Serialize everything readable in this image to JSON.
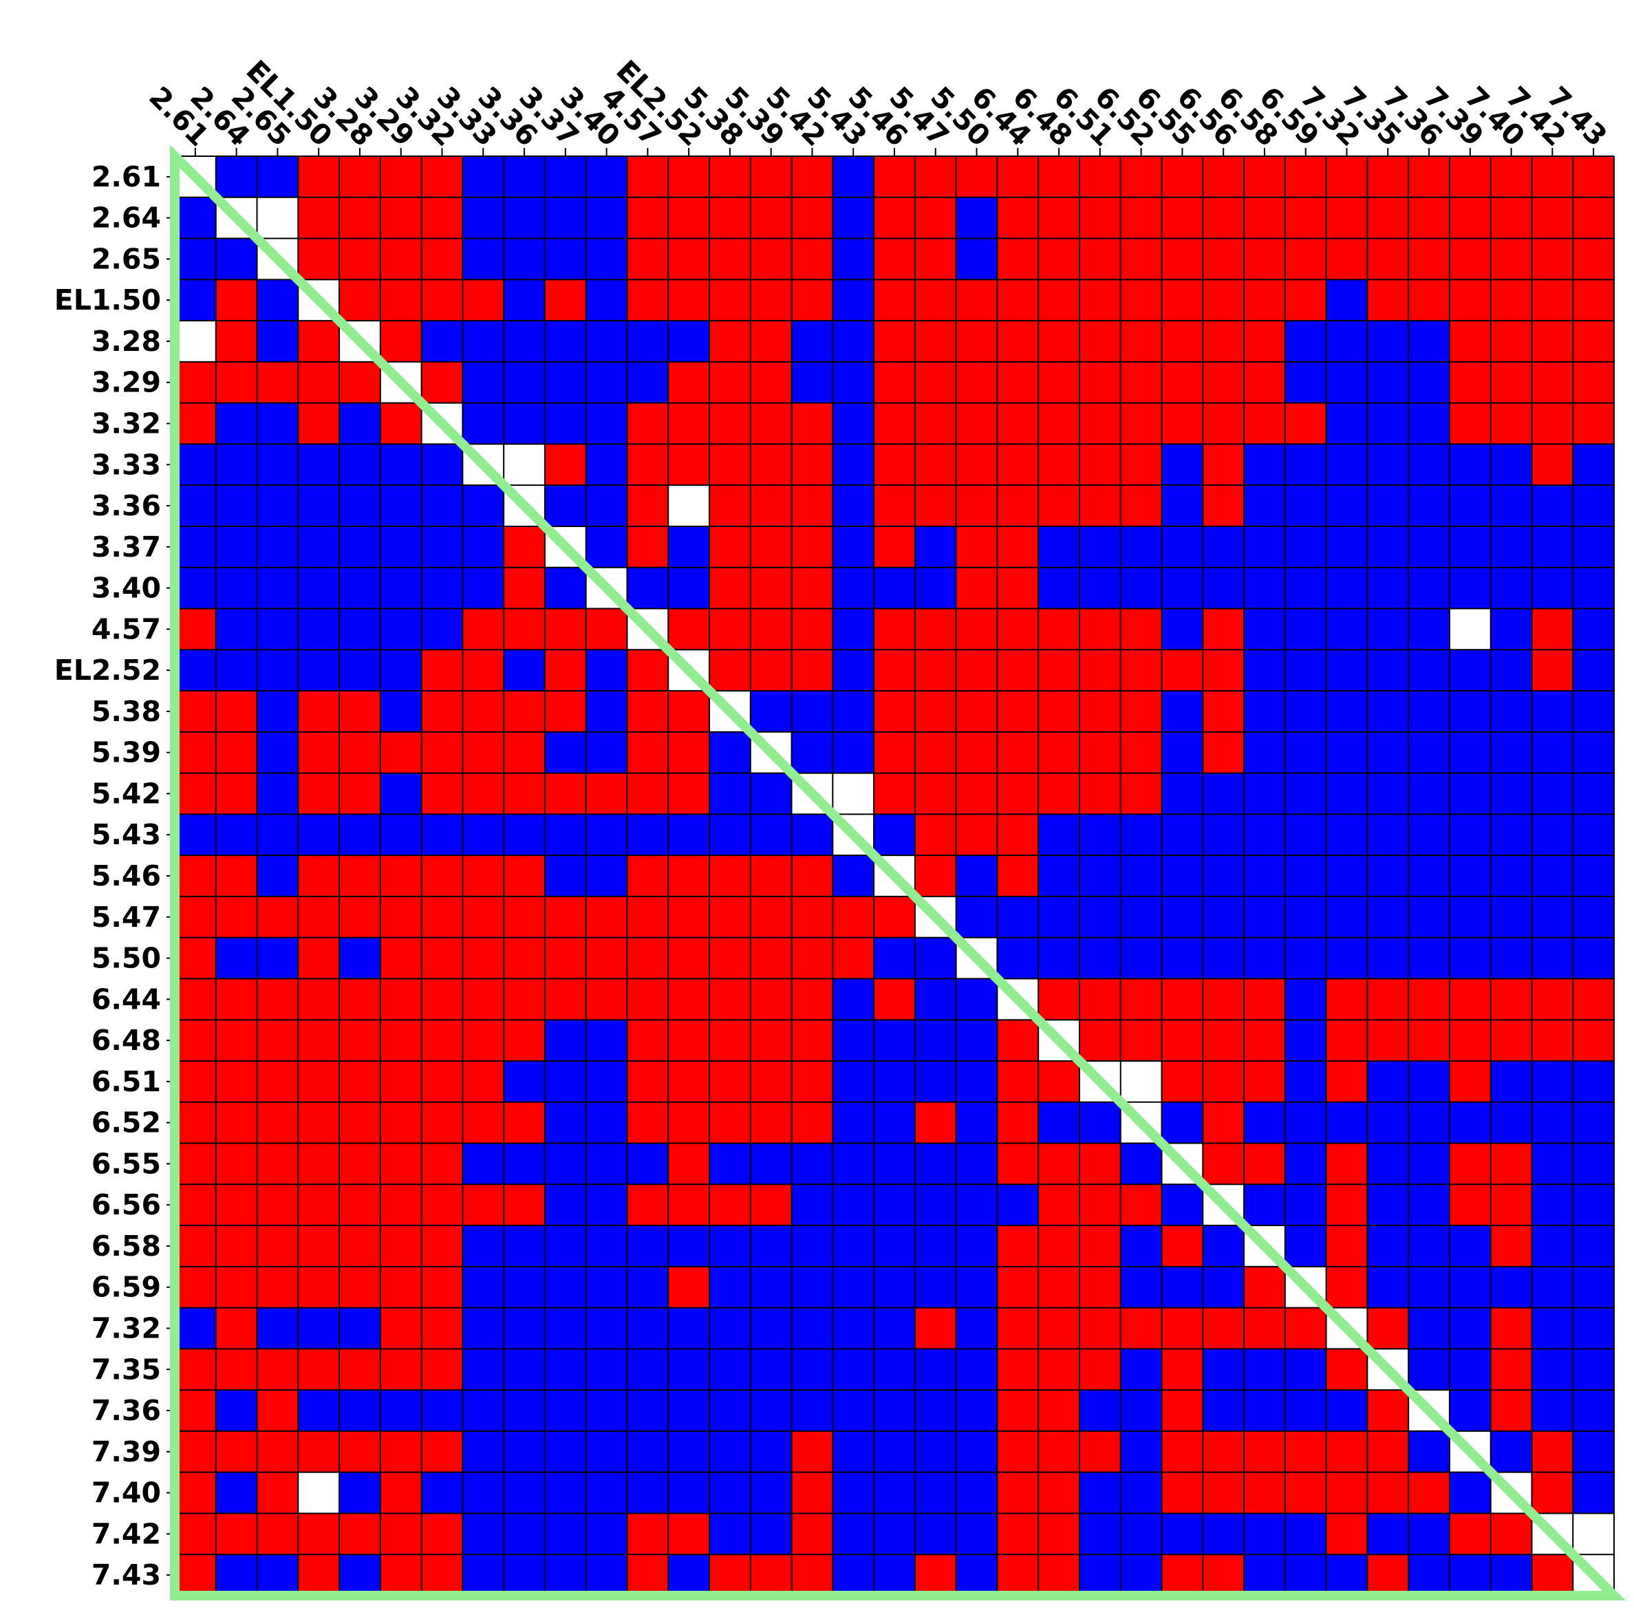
{
  "chart_data": {
    "type": "heatmap",
    "title": "",
    "labels": [
      "2.61",
      "2.64",
      "2.65",
      "EL1.50",
      "3.28",
      "3.29",
      "3.32",
      "3.33",
      "3.36",
      "3.37",
      "3.40",
      "4.57",
      "EL2.52",
      "5.38",
      "5.39",
      "5.42",
      "5.43",
      "5.46",
      "5.47",
      "5.50",
      "6.44",
      "6.48",
      "6.51",
      "6.52",
      "6.55",
      "6.56",
      "6.58",
      "6.59",
      "7.32",
      "7.35",
      "7.36",
      "7.39",
      "7.40",
      "7.42",
      "7.43"
    ],
    "value_legend": {
      "1": "red",
      "-1": "blue",
      "0": "white"
    },
    "colors": {
      "positive": "#ff0000",
      "negative": "#0000ff",
      "empty": "#ffffff",
      "triangle": "#90ee90",
      "gridline": "#000000"
    },
    "matrix": [
      [
        0,
        -1,
        -1,
        1,
        1,
        1,
        1,
        -1,
        -1,
        -1,
        -1,
        1,
        1,
        1,
        1,
        1,
        -1,
        1,
        1,
        1,
        1,
        1,
        1,
        1,
        1,
        1,
        1,
        1,
        1,
        1,
        1,
        1,
        1,
        1,
        1
      ],
      [
        -1,
        0,
        0,
        1,
        1,
        1,
        1,
        -1,
        -1,
        -1,
        -1,
        1,
        1,
        1,
        1,
        1,
        -1,
        1,
        1,
        -1,
        1,
        1,
        1,
        1,
        1,
        1,
        1,
        1,
        1,
        1,
        1,
        1,
        1,
        1,
        1
      ],
      [
        -1,
        -1,
        0,
        1,
        1,
        1,
        1,
        -1,
        -1,
        -1,
        -1,
        1,
        1,
        1,
        1,
        1,
        -1,
        1,
        1,
        -1,
        1,
        1,
        1,
        1,
        1,
        1,
        1,
        1,
        1,
        1,
        1,
        1,
        1,
        1,
        1
      ],
      [
        -1,
        1,
        -1,
        0,
        1,
        1,
        1,
        1,
        -1,
        1,
        -1,
        1,
        1,
        1,
        1,
        1,
        -1,
        1,
        1,
        1,
        1,
        1,
        1,
        1,
        1,
        1,
        1,
        1,
        -1,
        1,
        1,
        1,
        1,
        1,
        1
      ],
      [
        0,
        1,
        -1,
        1,
        0,
        1,
        -1,
        -1,
        -1,
        -1,
        -1,
        -1,
        -1,
        1,
        1,
        -1,
        -1,
        1,
        1,
        1,
        1,
        1,
        1,
        1,
        1,
        1,
        1,
        -1,
        -1,
        -1,
        -1,
        1,
        1,
        1,
        1
      ],
      [
        1,
        1,
        1,
        1,
        1,
        0,
        1,
        -1,
        -1,
        -1,
        -1,
        -1,
        1,
        1,
        1,
        -1,
        -1,
        1,
        1,
        1,
        1,
        1,
        1,
        1,
        1,
        1,
        1,
        -1,
        -1,
        -1,
        -1,
        1,
        1,
        1,
        1
      ],
      [
        1,
        -1,
        -1,
        1,
        -1,
        1,
        0,
        -1,
        -1,
        -1,
        -1,
        1,
        1,
        1,
        1,
        1,
        -1,
        1,
        1,
        1,
        1,
        1,
        1,
        1,
        1,
        1,
        1,
        1,
        -1,
        -1,
        -1,
        1,
        1,
        1,
        1
      ],
      [
        -1,
        -1,
        -1,
        -1,
        -1,
        -1,
        -1,
        0,
        0,
        1,
        -1,
        1,
        1,
        1,
        1,
        1,
        -1,
        1,
        1,
        1,
        1,
        1,
        1,
        1,
        -1,
        1,
        -1,
        -1,
        -1,
        -1,
        -1,
        -1,
        -1,
        1,
        -1
      ],
      [
        -1,
        -1,
        -1,
        -1,
        -1,
        -1,
        -1,
        -1,
        0,
        -1,
        -1,
        1,
        0,
        1,
        1,
        1,
        -1,
        1,
        1,
        1,
        1,
        1,
        1,
        1,
        -1,
        1,
        -1,
        -1,
        -1,
        -1,
        -1,
        -1,
        -1,
        -1,
        -1
      ],
      [
        -1,
        -1,
        -1,
        -1,
        -1,
        -1,
        -1,
        -1,
        1,
        0,
        -1,
        1,
        -1,
        1,
        1,
        1,
        -1,
        1,
        -1,
        1,
        1,
        -1,
        -1,
        -1,
        -1,
        -1,
        -1,
        -1,
        -1,
        -1,
        -1,
        -1,
        -1,
        -1,
        -1
      ],
      [
        -1,
        -1,
        -1,
        -1,
        -1,
        -1,
        -1,
        -1,
        1,
        -1,
        0,
        -1,
        -1,
        1,
        1,
        1,
        -1,
        -1,
        -1,
        1,
        1,
        -1,
        -1,
        -1,
        -1,
        -1,
        -1,
        -1,
        -1,
        -1,
        -1,
        -1,
        -1,
        -1,
        -1
      ],
      [
        1,
        -1,
        -1,
        -1,
        -1,
        -1,
        -1,
        1,
        1,
        1,
        1,
        0,
        1,
        1,
        1,
        1,
        -1,
        1,
        1,
        1,
        1,
        1,
        1,
        1,
        -1,
        1,
        -1,
        -1,
        -1,
        -1,
        -1,
        0,
        -1,
        1,
        -1
      ],
      [
        -1,
        -1,
        -1,
        -1,
        -1,
        -1,
        1,
        1,
        -1,
        1,
        -1,
        1,
        0,
        1,
        1,
        1,
        -1,
        1,
        1,
        1,
        1,
        1,
        1,
        1,
        1,
        1,
        -1,
        -1,
        -1,
        -1,
        -1,
        -1,
        -1,
        1,
        -1
      ],
      [
        1,
        1,
        -1,
        1,
        1,
        -1,
        1,
        1,
        1,
        1,
        -1,
        1,
        1,
        0,
        -1,
        -1,
        -1,
        1,
        1,
        1,
        1,
        1,
        1,
        1,
        -1,
        1,
        -1,
        -1,
        -1,
        -1,
        -1,
        -1,
        -1,
        -1,
        -1
      ],
      [
        1,
        1,
        -1,
        1,
        1,
        1,
        1,
        1,
        1,
        -1,
        -1,
        1,
        1,
        -1,
        0,
        -1,
        -1,
        1,
        1,
        1,
        1,
        1,
        1,
        1,
        -1,
        1,
        -1,
        -1,
        -1,
        -1,
        -1,
        -1,
        -1,
        -1,
        -1
      ],
      [
        1,
        1,
        -1,
        1,
        1,
        -1,
        1,
        1,
        1,
        1,
        1,
        1,
        1,
        -1,
        -1,
        0,
        0,
        1,
        1,
        1,
        1,
        1,
        1,
        1,
        -1,
        -1,
        -1,
        -1,
        -1,
        -1,
        -1,
        -1,
        -1,
        -1,
        -1
      ],
      [
        -1,
        -1,
        -1,
        -1,
        -1,
        -1,
        -1,
        -1,
        -1,
        -1,
        -1,
        -1,
        -1,
        -1,
        -1,
        -1,
        0,
        -1,
        1,
        1,
        1,
        -1,
        -1,
        -1,
        -1,
        -1,
        -1,
        -1,
        -1,
        -1,
        -1,
        -1,
        -1,
        -1,
        -1
      ],
      [
        1,
        1,
        -1,
        1,
        1,
        1,
        1,
        1,
        1,
        -1,
        -1,
        1,
        1,
        1,
        1,
        1,
        -1,
        0,
        1,
        -1,
        1,
        -1,
        -1,
        -1,
        -1,
        -1,
        -1,
        -1,
        -1,
        -1,
        -1,
        -1,
        -1,
        -1,
        -1
      ],
      [
        1,
        1,
        1,
        1,
        1,
        1,
        1,
        1,
        1,
        1,
        1,
        1,
        1,
        1,
        1,
        1,
        1,
        1,
        0,
        -1,
        -1,
        -1,
        -1,
        -1,
        -1,
        -1,
        -1,
        -1,
        -1,
        -1,
        -1,
        -1,
        -1,
        -1,
        -1
      ],
      [
        1,
        -1,
        -1,
        1,
        -1,
        1,
        1,
        1,
        1,
        1,
        1,
        1,
        1,
        1,
        1,
        1,
        1,
        -1,
        -1,
        0,
        -1,
        -1,
        -1,
        -1,
        -1,
        -1,
        -1,
        -1,
        -1,
        -1,
        -1,
        -1,
        -1,
        -1,
        -1
      ],
      [
        1,
        1,
        1,
        1,
        1,
        1,
        1,
        1,
        1,
        1,
        1,
        1,
        1,
        1,
        1,
        1,
        -1,
        1,
        -1,
        -1,
        0,
        1,
        1,
        1,
        1,
        1,
        1,
        -1,
        1,
        1,
        1,
        1,
        1,
        1,
        1
      ],
      [
        1,
        1,
        1,
        1,
        1,
        1,
        1,
        1,
        1,
        -1,
        -1,
        1,
        1,
        1,
        1,
        1,
        -1,
        -1,
        -1,
        -1,
        1,
        0,
        1,
        1,
        1,
        1,
        1,
        -1,
        1,
        1,
        1,
        1,
        1,
        1,
        1
      ],
      [
        1,
        1,
        1,
        1,
        1,
        1,
        1,
        1,
        -1,
        -1,
        -1,
        1,
        1,
        1,
        1,
        1,
        -1,
        -1,
        -1,
        -1,
        1,
        1,
        0,
        0,
        1,
        1,
        1,
        -1,
        1,
        -1,
        -1,
        1,
        -1,
        -1,
        -1
      ],
      [
        1,
        1,
        1,
        1,
        1,
        1,
        1,
        1,
        1,
        -1,
        -1,
        1,
        1,
        1,
        1,
        1,
        -1,
        -1,
        1,
        -1,
        1,
        -1,
        -1,
        0,
        -1,
        1,
        -1,
        -1,
        -1,
        -1,
        -1,
        -1,
        -1,
        -1,
        -1
      ],
      [
        1,
        1,
        1,
        1,
        1,
        1,
        1,
        -1,
        -1,
        -1,
        -1,
        -1,
        1,
        -1,
        -1,
        -1,
        -1,
        -1,
        -1,
        -1,
        1,
        1,
        1,
        -1,
        0,
        1,
        1,
        -1,
        1,
        -1,
        -1,
        1,
        1,
        -1,
        -1
      ],
      [
        1,
        1,
        1,
        1,
        1,
        1,
        1,
        1,
        1,
        -1,
        -1,
        1,
        1,
        1,
        1,
        -1,
        -1,
        -1,
        -1,
        -1,
        -1,
        1,
        1,
        1,
        -1,
        0,
        -1,
        -1,
        1,
        -1,
        -1,
        1,
        1,
        -1,
        -1
      ],
      [
        1,
        1,
        1,
        1,
        1,
        1,
        1,
        -1,
        -1,
        -1,
        -1,
        -1,
        -1,
        -1,
        -1,
        -1,
        -1,
        -1,
        -1,
        -1,
        1,
        1,
        1,
        -1,
        1,
        -1,
        0,
        -1,
        1,
        -1,
        -1,
        -1,
        1,
        -1,
        -1
      ],
      [
        1,
        1,
        1,
        1,
        1,
        1,
        1,
        -1,
        -1,
        -1,
        -1,
        -1,
        1,
        -1,
        -1,
        -1,
        -1,
        -1,
        -1,
        -1,
        1,
        1,
        1,
        -1,
        -1,
        -1,
        1,
        0,
        1,
        -1,
        -1,
        -1,
        -1,
        -1,
        -1
      ],
      [
        -1,
        1,
        -1,
        -1,
        -1,
        1,
        1,
        -1,
        -1,
        -1,
        -1,
        -1,
        -1,
        -1,
        -1,
        -1,
        -1,
        -1,
        1,
        -1,
        1,
        1,
        1,
        1,
        1,
        1,
        1,
        1,
        0,
        1,
        -1,
        -1,
        1,
        -1,
        -1
      ],
      [
        1,
        1,
        1,
        1,
        1,
        1,
        1,
        -1,
        -1,
        -1,
        -1,
        -1,
        -1,
        -1,
        -1,
        -1,
        -1,
        -1,
        -1,
        -1,
        1,
        1,
        1,
        -1,
        1,
        -1,
        -1,
        -1,
        1,
        0,
        -1,
        -1,
        1,
        -1,
        -1
      ],
      [
        1,
        -1,
        1,
        -1,
        -1,
        -1,
        -1,
        -1,
        -1,
        -1,
        -1,
        -1,
        -1,
        -1,
        -1,
        -1,
        -1,
        -1,
        -1,
        -1,
        1,
        1,
        -1,
        -1,
        1,
        -1,
        -1,
        -1,
        -1,
        1,
        0,
        -1,
        1,
        -1,
        -1
      ],
      [
        1,
        1,
        1,
        1,
        1,
        1,
        1,
        -1,
        -1,
        -1,
        -1,
        -1,
        -1,
        -1,
        -1,
        1,
        -1,
        -1,
        -1,
        -1,
        1,
        1,
        1,
        -1,
        1,
        1,
        1,
        1,
        1,
        1,
        -1,
        0,
        -1,
        1,
        -1
      ],
      [
        1,
        -1,
        1,
        0,
        -1,
        1,
        -1,
        -1,
        -1,
        -1,
        -1,
        -1,
        -1,
        -1,
        -1,
        1,
        -1,
        -1,
        -1,
        -1,
        1,
        1,
        -1,
        -1,
        1,
        1,
        1,
        1,
        1,
        1,
        1,
        -1,
        0,
        1,
        -1
      ],
      [
        1,
        1,
        1,
        1,
        1,
        1,
        1,
        -1,
        -1,
        -1,
        -1,
        1,
        1,
        -1,
        -1,
        1,
        -1,
        -1,
        -1,
        -1,
        1,
        1,
        -1,
        -1,
        -1,
        -1,
        -1,
        -1,
        1,
        -1,
        -1,
        1,
        1,
        0,
        0
      ],
      [
        1,
        -1,
        -1,
        1,
        -1,
        1,
        1,
        -1,
        -1,
        -1,
        -1,
        1,
        -1,
        1,
        1,
        1,
        -1,
        -1,
        1,
        -1,
        1,
        1,
        -1,
        -1,
        1,
        1,
        -1,
        -1,
        -1,
        1,
        -1,
        -1,
        -1,
        1,
        0
      ]
    ],
    "grid": true,
    "legend": "none",
    "annotations": [
      "lower-left triangle outline along diagonal"
    ]
  }
}
